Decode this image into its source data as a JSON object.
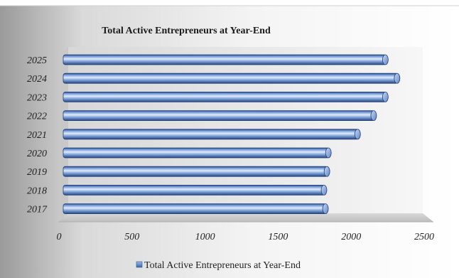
{
  "chart_data": {
    "type": "bar",
    "orientation": "horizontal",
    "title": "Total Active Entrepreneurs at Year-End",
    "categories": [
      "2017",
      "2018",
      "2019",
      "2020",
      "2021",
      "2022",
      "2023",
      "2024",
      "2025"
    ],
    "series": [
      {
        "name": "Total Active Entrepreneurs at Year-End",
        "values": [
          1800,
          1790,
          1810,
          1820,
          2020,
          2130,
          2210,
          2290,
          2210
        ]
      }
    ],
    "xlim": [
      0,
      2500
    ],
    "x_ticks": [
      "0",
      "500",
      "1000",
      "1500",
      "2000",
      "2500"
    ],
    "grid": false,
    "legend_position": "bottom",
    "style": "3d-cylinder",
    "colors": {
      "bar_light": "#d6e3f7",
      "bar_mid": "#6f95d4",
      "bar_dark": "#2a4f94",
      "floor": "#cfcfcf",
      "wall": "#e6e6e6"
    }
  }
}
